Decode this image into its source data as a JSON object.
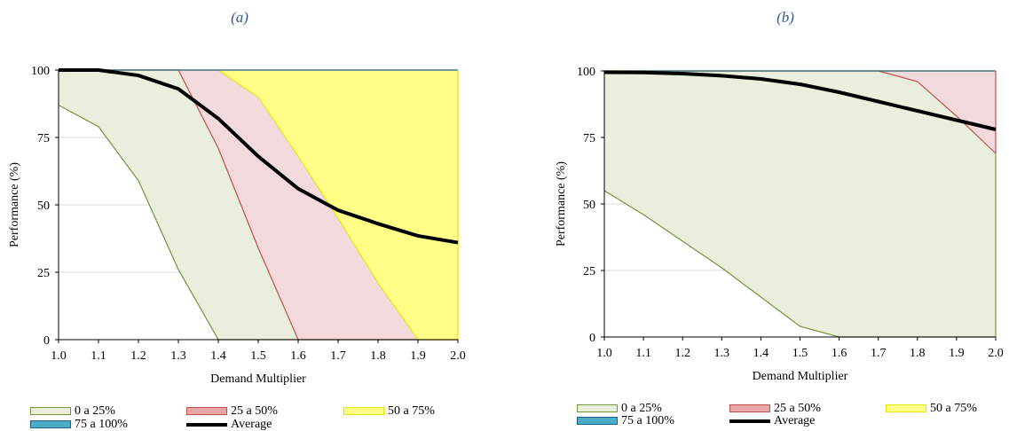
{
  "chart_data": [
    {
      "panel_label": "(a)",
      "type": "area",
      "xlabel": "Demand Multiplier",
      "ylabel": "Performance (%)",
      "x": [
        1.0,
        1.1,
        1.2,
        1.3,
        1.4,
        1.5,
        1.6,
        1.7,
        1.8,
        1.9,
        2.0
      ],
      "x_tick_labels": [
        "1.0",
        "1.1",
        "1.2",
        "1.3",
        "1.4",
        "1.5",
        "1.6",
        "1.7",
        "1.8",
        "1.9",
        "2.0"
      ],
      "y_ticks": [
        0,
        25,
        50,
        75,
        100
      ],
      "xlim": [
        1.0,
        2.0
      ],
      "ylim": [
        0,
        100
      ],
      "bands": [
        {
          "name": "0 a 25%",
          "fill": "#EAEEDC",
          "stroke": "#77933C",
          "lower": [
            87,
            79,
            59,
            26,
            0,
            0,
            0,
            0,
            0,
            0,
            0
          ]
        },
        {
          "name": "25 a 50%",
          "fill": "#F2D9DC",
          "stroke": "#C0504D",
          "lower": [
            100,
            100,
            100,
            100,
            71,
            34,
            0,
            0,
            0,
            0,
            0
          ]
        },
        {
          "name": "50 a 75%",
          "fill": "#FFFF88",
          "stroke": "#E6E600",
          "lower": [
            100,
            100,
            100,
            100,
            100,
            90,
            68,
            45,
            21,
            0,
            0
          ]
        },
        {
          "name": "75 a 100%",
          "fill": "#4BACC6",
          "stroke": "#1F5F8B",
          "lower": [
            100,
            100,
            100,
            100,
            100,
            100,
            100,
            100,
            100,
            100,
            100
          ]
        }
      ],
      "average": {
        "name": "Average",
        "values": [
          100,
          100,
          98,
          93,
          82,
          68,
          56,
          48,
          43,
          38.5,
          36
        ]
      },
      "grid": true,
      "legend": "bottom"
    },
    {
      "panel_label": "(b)",
      "type": "area",
      "xlabel": "Demand Multiplier",
      "ylabel": "Performance  (%)",
      "x": [
        1.0,
        1.1,
        1.2,
        1.3,
        1.4,
        1.5,
        1.6,
        1.7,
        1.8,
        1.9,
        2.0
      ],
      "x_tick_labels": [
        "1.0",
        "1.1",
        "1.2",
        "1.3",
        "1.4",
        "1.5",
        "1.6",
        "1.7",
        "1.8",
        "1.9",
        "2.0"
      ],
      "y_ticks": [
        0,
        25,
        50,
        75,
        100
      ],
      "xlim": [
        1.0,
        2.0
      ],
      "ylim": [
        0,
        100
      ],
      "bands": [
        {
          "name": "0 a 25%",
          "fill": "#EAEEDC",
          "stroke": "#77933C",
          "lower": [
            55,
            46,
            36,
            26,
            15,
            4,
            0,
            0,
            0,
            0,
            0
          ]
        },
        {
          "name": "25 a 50%",
          "fill": "#F2D9DC",
          "stroke": "#C0504D",
          "lower": [
            100,
            100,
            100,
            100,
            100,
            100,
            100,
            100,
            96,
            83,
            69
          ]
        },
        {
          "name": "50 a 75%",
          "fill": "#FFFF88",
          "stroke": "#E6E600",
          "lower": [
            100,
            100,
            100,
            100,
            100,
            100,
            100,
            100,
            100,
            100,
            100
          ]
        },
        {
          "name": "75 a 100%",
          "fill": "#4BACC6",
          "stroke": "#1F5F8B",
          "lower": [
            100,
            100,
            100,
            100,
            100,
            100,
            100,
            100,
            100,
            100,
            100
          ]
        }
      ],
      "average": {
        "name": "Average",
        "values": [
          99.5,
          99.4,
          99,
          98.2,
          97,
          95,
          92,
          88.5,
          85,
          81.5,
          78
        ]
      },
      "grid": true,
      "legend": "bottom"
    }
  ]
}
